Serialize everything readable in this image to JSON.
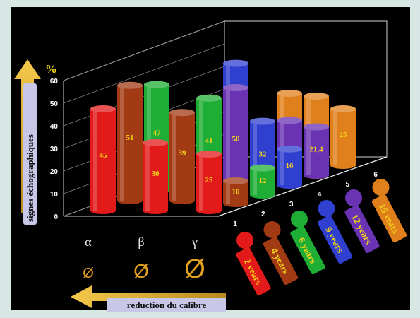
{
  "chart_data": {
    "type": "bar",
    "style": "3d-cylinder",
    "y_unit": "%",
    "ylabel": "signes échographiques",
    "xlabel": "réduction du calibre",
    "ylim": [
      0,
      60
    ],
    "y_ticks": [
      "0",
      "10",
      "20",
      "30",
      "40",
      "50",
      "60"
    ],
    "depth_ticks": [
      "1",
      "2",
      "3",
      "4",
      "5",
      "6"
    ],
    "groups": [
      {
        "label": "α",
        "bars": [
          {
            "series": "2 years",
            "value": 45,
            "label": "45"
          },
          {
            "series": "4 years",
            "value": 51,
            "label": "51"
          },
          {
            "series": "6 years",
            "value": 47,
            "label": "47"
          }
        ]
      },
      {
        "label": "β",
        "bars": [
          {
            "series": "2 years",
            "value": 30,
            "label": "30"
          },
          {
            "series": "4 years",
            "value": 39,
            "label": "39"
          },
          {
            "series": "6 years",
            "value": 41,
            "label": "41"
          },
          {
            "series": "9 years",
            "value": 52,
            "label": "52"
          }
        ]
      },
      {
        "label": "γ",
        "bars": [
          {
            "series": "2 years",
            "value": 25,
            "label": "25"
          },
          {
            "series": "12 years",
            "value": 50,
            "label": "50"
          }
        ]
      },
      {
        "label": "",
        "bars": [
          {
            "series": "4 years",
            "value": 10,
            "label": "10"
          },
          {
            "series": "9 years",
            "value": 32,
            "label": "32"
          },
          {
            "series": "15 years",
            "value": 40,
            "label": "40"
          }
        ]
      },
      {
        "label": "",
        "bars": [
          {
            "series": "6 years",
            "value": 12,
            "label": "12"
          },
          {
            "series": "12 years",
            "value": 28.6,
            "label": "28,6"
          }
        ]
      },
      {
        "label": "",
        "bars": [
          {
            "series": "9 years",
            "value": 16,
            "label": "16"
          },
          {
            "series": "15 years",
            "value": 35,
            "label": "35"
          }
        ]
      },
      {
        "label": "",
        "bars": [
          {
            "series": "12 years",
            "value": 21.4,
            "label": "21,4"
          }
        ]
      },
      {
        "label": "",
        "bars": [
          {
            "series": "15 years",
            "value": 25,
            "label": "25"
          }
        ]
      }
    ],
    "legend": [
      {
        "name": "2 years",
        "color": "#e21a1a"
      },
      {
        "name": "4 years",
        "color": "#a23a14"
      },
      {
        "name": "6 years",
        "color": "#1fae35"
      },
      {
        "name": "9 years",
        "color": "#2f3fd0"
      },
      {
        "name": "12 years",
        "color": "#6a33b4"
      },
      {
        "name": "15 years",
        "color": "#e0801c"
      }
    ],
    "diameter_symbols": [
      "Ø",
      "Ø",
      "Ø"
    ],
    "label_color": "#f2d21a",
    "axis_badge_color": "#c9c7e8"
  }
}
